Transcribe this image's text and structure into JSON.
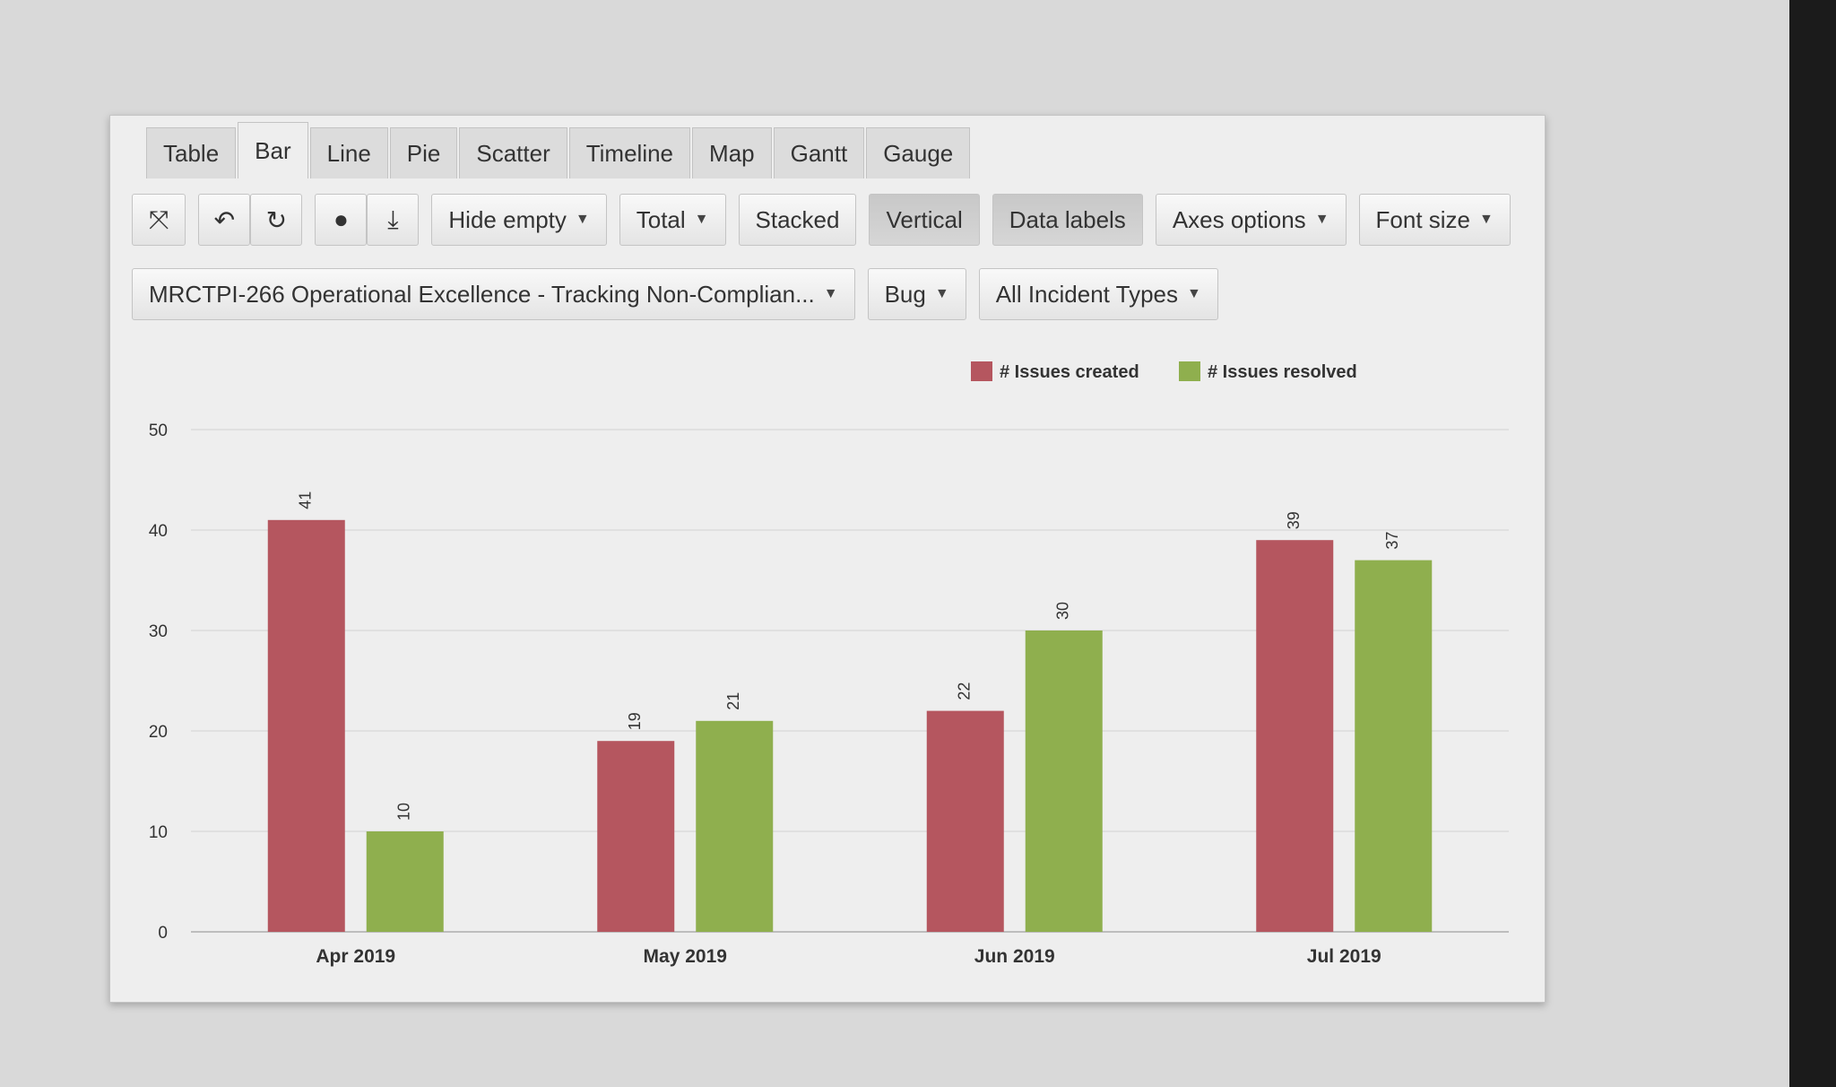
{
  "tabs": [
    "Table",
    "Bar",
    "Line",
    "Pie",
    "Scatter",
    "Timeline",
    "Map",
    "Gantt",
    "Gauge"
  ],
  "active_tab": "Bar",
  "toolbar": {
    "icons": [
      "fullscreen-icon",
      "undo-icon",
      "redo-icon",
      "comment-icon",
      "download-icon"
    ],
    "hide_empty": "Hide empty",
    "total": "Total",
    "stacked": "Stacked",
    "vertical": "Vertical",
    "data_labels": "Data labels",
    "axes_options": "Axes options",
    "font_size": "Font size"
  },
  "filters": {
    "project": "MRCTPI-266 Operational Excellence - Tracking Non-Complian...",
    "issue_type": "Bug",
    "incident_types": "All Incident Types"
  },
  "colors": {
    "created": "#b5565f",
    "resolved": "#8faf4e",
    "grid": "#dcdcdc",
    "axis_text": "#333333"
  },
  "chart_data": {
    "type": "bar",
    "categories": [
      "Apr 2019",
      "May 2019",
      "Jun 2019",
      "Jul 2019"
    ],
    "series": [
      {
        "name": "# Issues created",
        "values": [
          41,
          19,
          22,
          39
        ]
      },
      {
        "name": "# Issues resolved",
        "values": [
          10,
          21,
          30,
          37
        ]
      }
    ],
    "ylim": [
      0,
      50
    ],
    "yticks": [
      0,
      10,
      20,
      30,
      40,
      50
    ],
    "grid": true,
    "legend": "top-right",
    "data_labels": true
  }
}
